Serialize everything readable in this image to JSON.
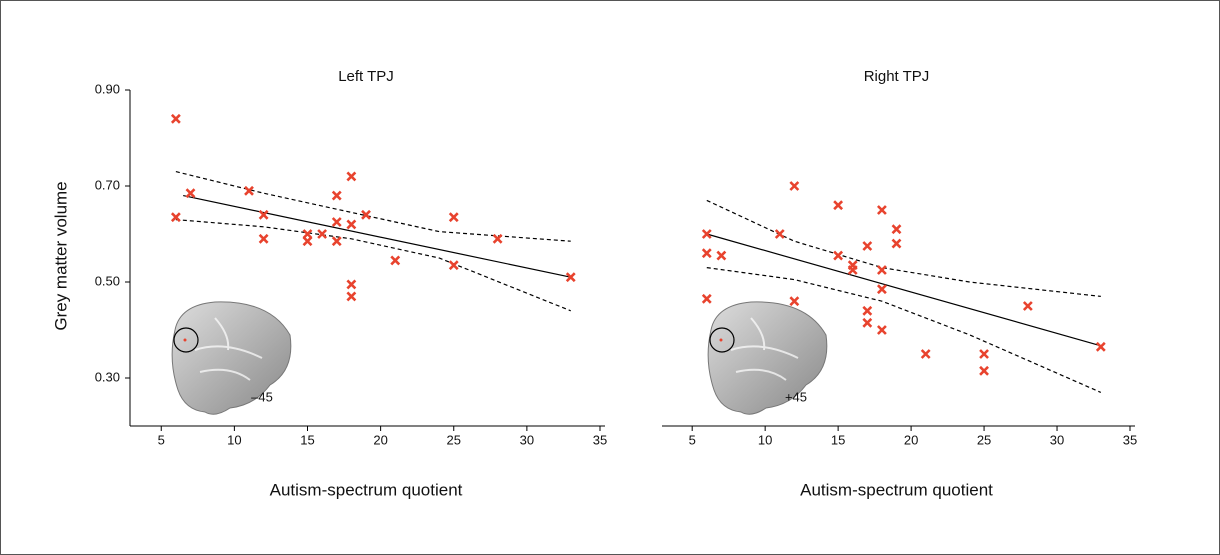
{
  "chart_data": [
    {
      "type": "scatter",
      "title": "Left TPJ",
      "x_label": "Autism-spectrum quotient",
      "y_label": "Grey matter volume",
      "annotation": "–45",
      "xlim": [
        3,
        35
      ],
      "xticks": [
        5,
        10,
        15,
        20,
        25,
        30,
        35
      ],
      "ylim": [
        0.2,
        0.9
      ],
      "yticks": [
        {
          "value": 0.3,
          "label": "0.30"
        },
        {
          "value": 0.5,
          "label": "0.50"
        },
        {
          "value": 0.7,
          "label": "0.70"
        },
        {
          "value": 0.9,
          "label": "0.90"
        }
      ],
      "marker_color": "#e8432e",
      "line_color": "#000000",
      "points": {
        "x": [
          6,
          6,
          7,
          11,
          12,
          12,
          15,
          15,
          16,
          17,
          17,
          17,
          18,
          18,
          18,
          18,
          19,
          21,
          25,
          25,
          28,
          33
        ],
        "y": [
          0.84,
          0.635,
          0.685,
          0.69,
          0.64,
          0.59,
          0.6,
          0.585,
          0.6,
          0.68,
          0.625,
          0.585,
          0.72,
          0.62,
          0.495,
          0.47,
          0.64,
          0.545,
          0.635,
          0.535,
          0.59,
          0.51
        ]
      },
      "fit": {
        "x": [
          6.5,
          33
        ],
        "y": [
          0.68,
          0.51
        ]
      },
      "ci_upper": {
        "x": [
          6,
          12,
          18,
          24,
          33
        ],
        "y": [
          0.73,
          0.685,
          0.645,
          0.605,
          0.585
        ]
      },
      "ci_lower": {
        "x": [
          6,
          12,
          18,
          24,
          33
        ],
        "y": [
          0.63,
          0.615,
          0.59,
          0.55,
          0.44
        ]
      }
    },
    {
      "type": "scatter",
      "title": "Right TPJ",
      "x_label": "Autism-spectrum quotient",
      "annotation": "+45",
      "xlim": [
        3,
        35
      ],
      "xticks": [
        5,
        10,
        15,
        20,
        25,
        30,
        35
      ],
      "ylim": [
        0.2,
        0.9
      ],
      "marker_color": "#e8432e",
      "line_color": "#000000",
      "points": {
        "x": [
          6,
          6,
          6,
          7,
          11,
          12,
          12,
          15,
          15,
          16,
          16,
          17,
          17,
          17,
          18,
          18,
          18,
          18,
          19,
          19,
          21,
          25,
          25,
          28,
          33
        ],
        "y": [
          0.6,
          0.56,
          0.465,
          0.555,
          0.6,
          0.7,
          0.46,
          0.66,
          0.555,
          0.535,
          0.525,
          0.575,
          0.44,
          0.415,
          0.65,
          0.525,
          0.485,
          0.4,
          0.61,
          0.58,
          0.35,
          0.35,
          0.315,
          0.45,
          0.365
        ]
      },
      "fit": {
        "x": [
          6,
          33
        ],
        "y": [
          0.6,
          0.367
        ]
      },
      "ci_upper": {
        "x": [
          6,
          12,
          18,
          24,
          33
        ],
        "y": [
          0.67,
          0.585,
          0.53,
          0.5,
          0.47
        ]
      },
      "ci_lower": {
        "x": [
          6,
          12,
          18,
          24,
          33
        ],
        "y": [
          0.53,
          0.505,
          0.46,
          0.39,
          0.27
        ]
      }
    }
  ]
}
